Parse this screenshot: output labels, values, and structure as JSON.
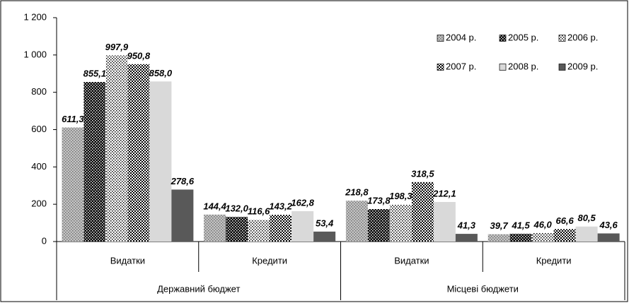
{
  "chart_data": {
    "type": "bar",
    "groups": [
      {
        "label": "Державний бюджет",
        "categories": [
          "Видатки",
          "Кредити"
        ]
      },
      {
        "label": "Місцеві бюджети",
        "categories": [
          "Видатки",
          "Кредити"
        ]
      }
    ],
    "series": [
      {
        "name": "2004 р.",
        "color": "#c4c4c4",
        "pattern": "dots",
        "pattern_color": "#6e6e6e",
        "values": [
          611.3,
          144.4,
          218.8,
          39.7
        ],
        "value_labels": [
          "611,3",
          "144,4",
          "218,8",
          "39,7"
        ]
      },
      {
        "name": "2005 р.",
        "color": "#000000",
        "pattern": "dots",
        "pattern_color": "#ffffff",
        "values": [
          855.1,
          132.0,
          173.8,
          41.5
        ],
        "value_labels": [
          "855,1",
          "132,0",
          "173,8",
          "41,5"
        ]
      },
      {
        "name": "2006 р.",
        "color": "#ffffff",
        "pattern": "dots",
        "pattern_color": "#000000",
        "values": [
          997.9,
          116.6,
          198.3,
          46.0
        ],
        "value_labels": [
          "997,9",
          "116,6",
          "198,3",
          "46,0"
        ]
      },
      {
        "name": "2007 р.",
        "color": "#ffffff",
        "pattern": "checker",
        "pattern_color": "#000000",
        "values": [
          950.8,
          143.2,
          318.5,
          66.6
        ],
        "value_labels": [
          "950,8",
          "143,2",
          "318,5",
          "66,6"
        ]
      },
      {
        "name": "2008 р.",
        "color": "#d9d9d9",
        "values": [
          858.0,
          162.8,
          212.1,
          80.5
        ],
        "value_labels": [
          "858,0",
          "162,8",
          "212,1",
          "80,5"
        ]
      },
      {
        "name": "2009 р.",
        "color": "#595959",
        "values": [
          278.6,
          53.4,
          41.3,
          43.6
        ],
        "value_labels": [
          "278,6",
          "53,4",
          "41,3",
          "43,6"
        ]
      }
    ],
    "ylim": [
      0,
      1200
    ],
    "yticks": [
      0,
      200,
      400,
      600,
      800,
      {
        "value": 1000,
        "label": "1 000"
      },
      {
        "value": 1200,
        "label": "1 200"
      }
    ],
    "legend": "upper right"
  }
}
